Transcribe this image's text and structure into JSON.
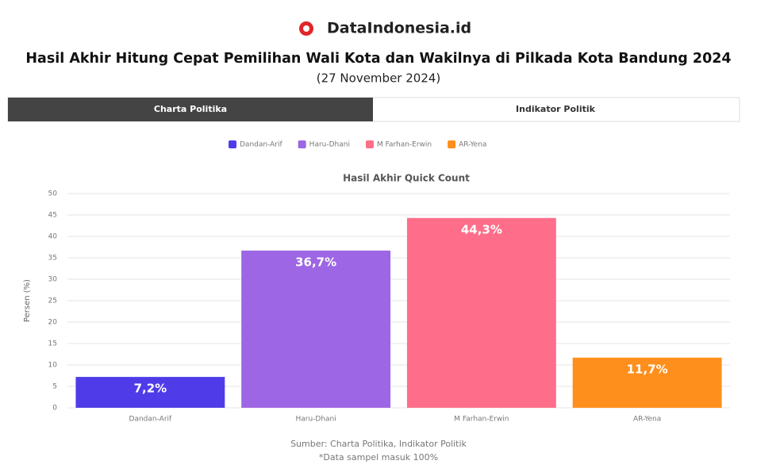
{
  "header": {
    "brand": "DataIndonesia.id",
    "title": "Hasil Akhir Hitung Cepat Pemilihan Wali Kota dan Wakilnya di Pilkada Kota Bandung 2024",
    "subtitle": "(27 November 2024)"
  },
  "tabs": [
    "Charta Politika",
    "Indikator Politik"
  ],
  "chart_data": {
    "type": "bar",
    "title": "Hasil Akhir Quick Count",
    "ylabel": "Persen (%)",
    "categories": [
      "Dandan-Arif",
      "Haru-Dhani",
      "M Farhan-Erwin",
      "AR-Yena"
    ],
    "values": [
      7.2,
      36.7,
      44.3,
      11.7
    ],
    "value_labels": [
      "7,2%",
      "36,7%",
      "44,3%",
      "11,7%"
    ],
    "colors": [
      "#4f3ce8",
      "#9d66e4",
      "#fe6e8a",
      "#fe8f1c"
    ],
    "ylim": [
      0,
      50
    ],
    "yticks": [
      0,
      5,
      10,
      15,
      20,
      25,
      30,
      35,
      40,
      45,
      50
    ],
    "grid": true,
    "legend": "top"
  },
  "source": [
    "Sumber: Charta Politika, Indikator Politik",
    "*Data sampel masuk 100%"
  ]
}
